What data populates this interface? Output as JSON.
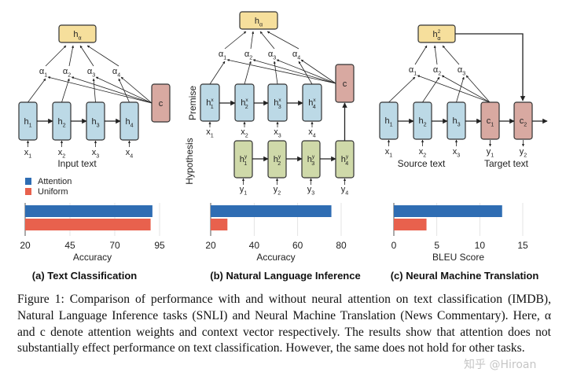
{
  "legend": [
    {
      "label": "Attention",
      "color": "#2f6db3"
    },
    {
      "label": "Uniform",
      "color": "#e8614d"
    }
  ],
  "colors": {
    "encoder": "#bcd9e6",
    "output": "#f6df9c",
    "context": "#d8a9a1",
    "hypothesis": "#cfd9a9",
    "stroke": "#333333"
  },
  "panels": [
    {
      "title": "(a) Text Classification",
      "output": {
        "t": "h",
        "sub": "α"
      },
      "alphas": [
        {
          "t": "α",
          "sub": "1"
        },
        {
          "t": "α",
          "sub": "2"
        },
        {
          "t": "α",
          "sub": "3"
        },
        {
          "t": "α",
          "sub": "4"
        }
      ],
      "nodes": [
        {
          "t": "h",
          "sub": "1"
        },
        {
          "t": "h",
          "sub": "2"
        },
        {
          "t": "h",
          "sub": "3"
        },
        {
          "t": "h",
          "sub": "4"
        }
      ],
      "inputs": [
        {
          "t": "x",
          "sub": "1"
        },
        {
          "t": "x",
          "sub": "2"
        },
        {
          "t": "x",
          "sub": "3"
        },
        {
          "t": "x",
          "sub": "4"
        }
      ],
      "context": {
        "t": "c"
      },
      "input_label": "Input text"
    },
    {
      "title": "(b) Natural Language Inference",
      "output": {
        "t": "h",
        "sub": "α"
      },
      "alphas": [
        {
          "t": "α",
          "sub": "1"
        },
        {
          "t": "α",
          "sub": "2"
        },
        {
          "t": "α",
          "sub": "3"
        },
        {
          "t": "α",
          "sub": "4"
        }
      ],
      "premise_label": "Premise",
      "hypothesis_label": "Hypothesis",
      "nodes": [
        {
          "t": "h",
          "sup": "x",
          "sub": "1"
        },
        {
          "t": "h",
          "sup": "x",
          "sub": "2"
        },
        {
          "t": "h",
          "sup": "x",
          "sub": "3"
        },
        {
          "t": "h",
          "sup": "x",
          "sub": "4"
        }
      ],
      "inputs": [
        {
          "t": "x",
          "sub": "1"
        },
        {
          "t": "x",
          "sub": "2"
        },
        {
          "t": "x",
          "sub": "3"
        },
        {
          "t": "x",
          "sub": "4"
        }
      ],
      "hyp_nodes": [
        {
          "t": "h",
          "sup": "y",
          "sub": "1"
        },
        {
          "t": "h",
          "sup": "y",
          "sub": "2"
        },
        {
          "t": "h",
          "sup": "y",
          "sub": "3"
        },
        {
          "t": "h",
          "sup": "y",
          "sub": "4"
        }
      ],
      "hyp_inputs": [
        {
          "t": "y",
          "sub": "1"
        },
        {
          "t": "y",
          "sub": "2"
        },
        {
          "t": "y",
          "sub": "3"
        },
        {
          "t": "y",
          "sub": "4"
        }
      ],
      "context": {
        "t": "c"
      }
    },
    {
      "title": "(c) Neural Machine Translation",
      "output": {
        "t": "h",
        "sup": "2",
        "sub": "α"
      },
      "alphas": [
        {
          "t": "α",
          "sub": "1"
        },
        {
          "t": "α",
          "sub": "2"
        },
        {
          "t": "α",
          "sub": "3"
        }
      ],
      "nodes": [
        {
          "t": "h",
          "sub": "1"
        },
        {
          "t": "h",
          "sub": "2"
        },
        {
          "t": "h",
          "sub": "3"
        }
      ],
      "inputs": [
        {
          "t": "x",
          "sub": "1"
        },
        {
          "t": "x",
          "sub": "2"
        },
        {
          "t": "x",
          "sub": "3"
        }
      ],
      "dec_nodes": [
        {
          "t": "c",
          "sub": "1"
        },
        {
          "t": "c",
          "sub": "2"
        }
      ],
      "outputs": [
        {
          "t": "y",
          "sub": "1"
        },
        {
          "t": "y",
          "sub": "2"
        }
      ],
      "source_label": "Source text",
      "target_label": "Target text"
    }
  ],
  "chart_data": [
    {
      "type": "bar",
      "title": "(a) Text Classification",
      "xlabel": "Accuracy",
      "xlim": [
        20,
        95
      ],
      "ticks": [
        "20",
        "45",
        "70",
        "95"
      ],
      "tick_values": [
        20,
        45,
        70,
        95
      ],
      "categories": [
        "Attention",
        "Uniform"
      ],
      "values": [
        91,
        90
      ],
      "grid": true
    },
    {
      "type": "bar",
      "title": "(b) Natural Language Inference",
      "xlabel": "Accuracy",
      "xlim": [
        20,
        80
      ],
      "ticks": [
        "20",
        "40",
        "60",
        "80"
      ],
      "tick_values": [
        20,
        40,
        60,
        80
      ],
      "categories": [
        "Attention",
        "Uniform"
      ],
      "values": [
        75.5,
        27.7
      ],
      "grid": true
    },
    {
      "type": "bar",
      "title": "(c) Neural Machine Translation",
      "xlabel": "BLEU Score",
      "xlim": [
        0,
        15
      ],
      "ticks": [
        "0",
        "5",
        "10",
        "15"
      ],
      "tick_values": [
        0,
        5,
        10,
        15
      ],
      "categories": [
        "Attention",
        "Uniform"
      ],
      "values": [
        12.6,
        3.8
      ],
      "grid": true
    }
  ],
  "caption": "Figure 1: Comparison of performance with and without neural attention on text classification (IMDB), Natural Language Inference tasks (SNLI) and Neural Machine Translation (News Commentary). Here, α and c denote attention weights and context vector respectively. The results show that attention does not substantially effect performance on text classification. However, the same does not hold for other tasks.",
  "watermark": "知乎 @Hiroan"
}
